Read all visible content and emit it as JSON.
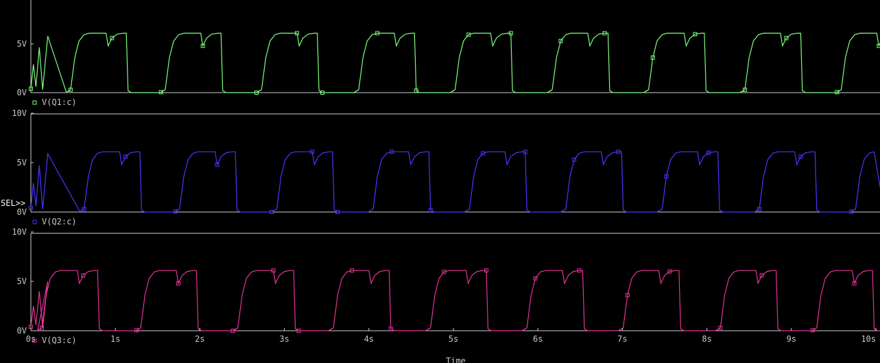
{
  "window": {
    "x_axis_label": "Time",
    "selector_label": "SEL>>"
  },
  "chart_data": [
    {
      "type": "line",
      "series": [
        {
          "name": "V(Q1:c)",
          "color": "#7dff7d",
          "marker": "square"
        }
      ],
      "xlim": [
        0,
        10
      ],
      "ylim": [
        0,
        10
      ],
      "ytick_labels": [
        "0V",
        "5V"
      ],
      "x_units": "s",
      "y_units": "V",
      "grid": false,
      "legend": "bottom-left",
      "waveform": {
        "period_s": 1.14,
        "first_rise_s": 0.47,
        "rise_at_s": [
          0,
          0.47,
          1.59,
          2.73,
          3.88,
          5.02,
          6.17,
          7.31,
          8.45,
          9.59
        ],
        "high_v": 6.1,
        "low_v": 0.0,
        "dip_v": 4.8,
        "startup_peak_v": 5.8
      }
    },
    {
      "type": "line",
      "series": [
        {
          "name": "V(Q2:c)",
          "color": "#4a35ff",
          "marker": "square"
        }
      ],
      "xlim": [
        0,
        10
      ],
      "ylim": [
        0,
        10
      ],
      "ytick_labels": [
        "0V",
        "5V",
        "10V"
      ],
      "x_units": "s",
      "y_units": "V",
      "grid": false,
      "legend": "bottom-left",
      "selected": true,
      "waveform": {
        "period_s": 1.14,
        "rise_at_s": [
          0.63,
          1.76,
          2.91,
          4.05,
          5.19,
          6.33,
          7.47,
          8.62,
          9.76
        ],
        "high_v": 6.1,
        "low_v": 0.0,
        "dip_v": 4.8,
        "startup_peak_v": 5.9
      }
    },
    {
      "type": "line",
      "series": [
        {
          "name": "V(Q3:c)",
          "color": "#e6339a",
          "marker": "square"
        }
      ],
      "xlim": [
        0,
        10
      ],
      "ylim": [
        0,
        10
      ],
      "xtick_labels": [
        "0s",
        "1s",
        "2s",
        "3s",
        "4s",
        "5s",
        "6s",
        "7s",
        "8s",
        "9s",
        "10s"
      ],
      "ytick_labels": [
        "0V",
        "5V",
        "10V"
      ],
      "xlabel": "Time",
      "x_units": "s",
      "y_units": "V",
      "grid": false,
      "legend": "bottom-left",
      "waveform": {
        "period_s": 1.14,
        "rise_at_s": [
          0.13,
          1.3,
          2.45,
          3.58,
          4.73,
          5.87,
          7.01,
          8.16,
          9.3
        ],
        "high_v": 6.1,
        "low_v": 0.0,
        "dip_v": 4.8,
        "startup_peak_v": 5.0
      }
    }
  ]
}
